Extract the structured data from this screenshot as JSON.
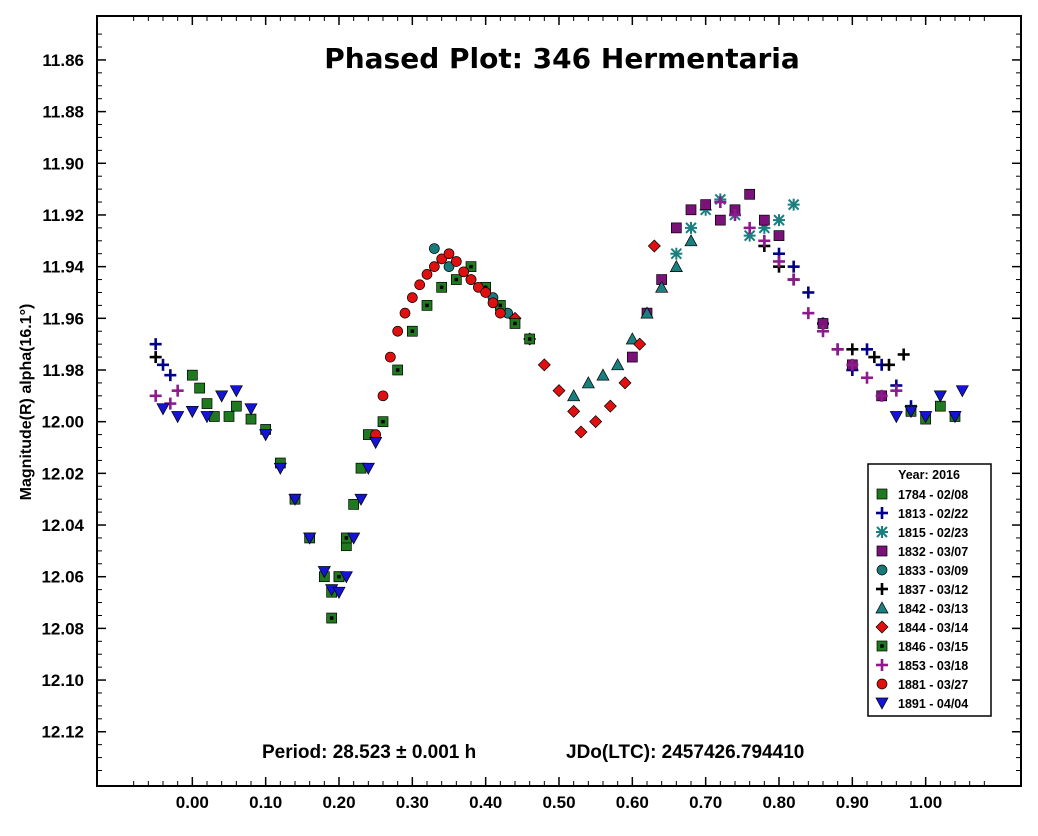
{
  "chart_data": {
    "type": "scatter",
    "title": "Phased Plot: 346 Hermentaria",
    "xlabel": "",
    "ylabel": "Magnitude(R) alpha(16.1°)",
    "xlim": [
      -0.13,
      1.13
    ],
    "ylim": [
      12.141,
      11.843
    ],
    "y_inverted": true,
    "grid": false,
    "x_ticks": [
      "0.00",
      "0.10",
      "0.20",
      "0.30",
      "0.40",
      "0.50",
      "0.60",
      "0.70",
      "0.80",
      "0.90",
      "1.00"
    ],
    "y_ticks": [
      "11.86",
      "11.88",
      "11.90",
      "11.92",
      "11.94",
      "11.96",
      "11.98",
      "12.00",
      "12.02",
      "12.04",
      "12.06",
      "12.08",
      "12.10",
      "12.12"
    ],
    "footer": {
      "period": "Period: 28.523 ± 0.001 h",
      "epoch": "JDo(LTC): 2457426.794410"
    },
    "legend": {
      "title": "Year: 2016",
      "placement": "bottom-right"
    },
    "series": [
      {
        "name": "1784 - 02/08",
        "marker": "square",
        "color": "#1f7a1f",
        "points": [
          [
            0.0,
            11.982
          ],
          [
            0.01,
            11.987
          ],
          [
            0.02,
            11.993
          ],
          [
            0.03,
            11.998
          ],
          [
            0.05,
            11.998
          ],
          [
            0.06,
            11.994
          ],
          [
            0.08,
            11.999
          ],
          [
            0.1,
            12.003
          ],
          [
            0.12,
            12.016
          ],
          [
            0.14,
            12.03
          ],
          [
            0.16,
            12.045
          ],
          [
            0.18,
            12.06
          ],
          [
            0.19,
            12.066
          ],
          [
            0.2,
            12.06
          ],
          [
            0.21,
            12.048
          ],
          [
            0.22,
            12.032
          ],
          [
            0.23,
            12.018
          ],
          [
            0.24,
            12.005
          ],
          [
            0.98,
            11.996
          ],
          [
            1.0,
            11.999
          ],
          [
            1.02,
            11.994
          ],
          [
            1.04,
            11.998
          ]
        ]
      },
      {
        "name": "1813 - 02/22",
        "marker": "plus",
        "color": "#00008b",
        "points": [
          [
            -0.05,
            11.97
          ],
          [
            -0.04,
            11.978
          ],
          [
            -0.03,
            11.982
          ],
          [
            0.8,
            11.935
          ],
          [
            0.82,
            11.94
          ],
          [
            0.84,
            11.95
          ],
          [
            0.86,
            11.962
          ],
          [
            0.88,
            11.972
          ],
          [
            0.9,
            11.98
          ],
          [
            0.92,
            11.972
          ],
          [
            0.94,
            11.978
          ],
          [
            0.96,
            11.986
          ],
          [
            0.98,
            11.994
          ]
        ]
      },
      {
        "name": "1815 - 02/23",
        "marker": "asterisk",
        "color": "#1a7f7f",
        "points": [
          [
            0.66,
            11.935
          ],
          [
            0.68,
            11.925
          ],
          [
            0.7,
            11.918
          ],
          [
            0.72,
            11.914
          ],
          [
            0.74,
            11.92
          ],
          [
            0.76,
            11.928
          ],
          [
            0.78,
            11.925
          ],
          [
            0.8,
            11.922
          ],
          [
            0.82,
            11.916
          ]
        ]
      },
      {
        "name": "1832 - 03/07",
        "marker": "square",
        "color": "#7a127a",
        "points": [
          [
            0.6,
            11.975
          ],
          [
            0.62,
            11.958
          ],
          [
            0.64,
            11.945
          ],
          [
            0.66,
            11.925
          ],
          [
            0.68,
            11.918
          ],
          [
            0.7,
            11.916
          ],
          [
            0.72,
            11.922
          ],
          [
            0.74,
            11.918
          ],
          [
            0.76,
            11.912
          ],
          [
            0.78,
            11.922
          ],
          [
            0.8,
            11.928
          ],
          [
            0.86,
            11.962
          ],
          [
            0.9,
            11.978
          ],
          [
            0.94,
            11.99
          ]
        ]
      },
      {
        "name": "1833 - 03/09",
        "marker": "circle",
        "color": "#1a7a7a",
        "points": [
          [
            0.33,
            11.933
          ],
          [
            0.35,
            11.94
          ],
          [
            0.38,
            11.945
          ],
          [
            0.41,
            11.952
          ],
          [
            0.43,
            11.958
          ]
        ]
      },
      {
        "name": "1837 - 03/12",
        "marker": "plus",
        "color": "#000000",
        "points": [
          [
            -0.05,
            11.975
          ],
          [
            0.78,
            11.932
          ],
          [
            0.8,
            11.94
          ],
          [
            0.82,
            11.945
          ],
          [
            0.9,
            11.972
          ],
          [
            0.93,
            11.975
          ],
          [
            0.95,
            11.978
          ],
          [
            0.97,
            11.974
          ]
        ]
      },
      {
        "name": "1842 - 03/13",
        "marker": "triangle-up",
        "color": "#1a7f7f",
        "points": [
          [
            0.52,
            11.99
          ],
          [
            0.54,
            11.985
          ],
          [
            0.56,
            11.982
          ],
          [
            0.58,
            11.978
          ],
          [
            0.6,
            11.968
          ],
          [
            0.62,
            11.958
          ],
          [
            0.64,
            11.948
          ],
          [
            0.66,
            11.94
          ],
          [
            0.68,
            11.93
          ]
        ]
      },
      {
        "name": "1844 - 03/14",
        "marker": "diamond",
        "color": "#e01010",
        "points": [
          [
            0.44,
            11.96
          ],
          [
            0.46,
            11.968
          ],
          [
            0.48,
            11.978
          ],
          [
            0.5,
            11.988
          ],
          [
            0.52,
            11.996
          ],
          [
            0.53,
            12.004
          ],
          [
            0.55,
            12.0
          ],
          [
            0.57,
            11.994
          ],
          [
            0.59,
            11.985
          ],
          [
            0.61,
            11.97
          ],
          [
            0.63,
            11.932
          ]
        ]
      },
      {
        "name": "1846 - 03/15",
        "marker": "square-dot",
        "color": "#1f7a1f",
        "points": [
          [
            0.19,
            12.076
          ],
          [
            0.2,
            12.06
          ],
          [
            0.21,
            12.045
          ],
          [
            0.26,
            12.0
          ],
          [
            0.28,
            11.98
          ],
          [
            0.3,
            11.965
          ],
          [
            0.32,
            11.955
          ],
          [
            0.34,
            11.948
          ],
          [
            0.36,
            11.945
          ],
          [
            0.38,
            11.94
          ],
          [
            0.4,
            11.948
          ],
          [
            0.42,
            11.955
          ],
          [
            0.44,
            11.962
          ],
          [
            0.46,
            11.968
          ]
        ]
      },
      {
        "name": "1853 - 03/18",
        "marker": "plus",
        "color": "#8e1a8e",
        "points": [
          [
            -0.05,
            11.99
          ],
          [
            -0.03,
            11.993
          ],
          [
            -0.02,
            11.988
          ],
          [
            0.72,
            11.915
          ],
          [
            0.74,
            11.92
          ],
          [
            0.76,
            11.925
          ],
          [
            0.78,
            11.93
          ],
          [
            0.8,
            11.938
          ],
          [
            0.82,
            11.945
          ],
          [
            0.84,
            11.958
          ],
          [
            0.86,
            11.965
          ],
          [
            0.88,
            11.972
          ],
          [
            0.9,
            11.978
          ],
          [
            0.92,
            11.983
          ],
          [
            0.94,
            11.99
          ],
          [
            0.96,
            11.988
          ]
        ]
      },
      {
        "name": "1881 - 03/27",
        "marker": "circle",
        "color": "#e01010",
        "points": [
          [
            0.25,
            12.005
          ],
          [
            0.26,
            11.99
          ],
          [
            0.27,
            11.975
          ],
          [
            0.28,
            11.965
          ],
          [
            0.29,
            11.958
          ],
          [
            0.3,
            11.952
          ],
          [
            0.31,
            11.947
          ],
          [
            0.32,
            11.943
          ],
          [
            0.33,
            11.94
          ],
          [
            0.34,
            11.937
          ],
          [
            0.35,
            11.935
          ],
          [
            0.36,
            11.938
          ],
          [
            0.37,
            11.942
          ],
          [
            0.38,
            11.945
          ],
          [
            0.39,
            11.948
          ],
          [
            0.4,
            11.95
          ],
          [
            0.41,
            11.954
          ],
          [
            0.42,
            11.958
          ]
        ]
      },
      {
        "name": "1891 - 04/04",
        "marker": "triangle-down",
        "color": "#1414d2",
        "points": [
          [
            -0.04,
            11.995
          ],
          [
            -0.02,
            11.998
          ],
          [
            0.0,
            11.996
          ],
          [
            0.02,
            11.998
          ],
          [
            0.04,
            11.99
          ],
          [
            0.06,
            11.988
          ],
          [
            0.08,
            11.995
          ],
          [
            0.1,
            12.005
          ],
          [
            0.12,
            12.018
          ],
          [
            0.14,
            12.03
          ],
          [
            0.16,
            12.045
          ],
          [
            0.18,
            12.058
          ],
          [
            0.19,
            12.065
          ],
          [
            0.2,
            12.066
          ],
          [
            0.21,
            12.06
          ],
          [
            0.22,
            12.045
          ],
          [
            0.23,
            12.03
          ],
          [
            0.24,
            12.018
          ],
          [
            0.25,
            12.008
          ],
          [
            0.96,
            11.998
          ],
          [
            0.98,
            11.996
          ],
          [
            1.0,
            11.998
          ],
          [
            1.02,
            11.99
          ],
          [
            1.04,
            11.998
          ],
          [
            1.05,
            11.988
          ]
        ]
      }
    ]
  }
}
